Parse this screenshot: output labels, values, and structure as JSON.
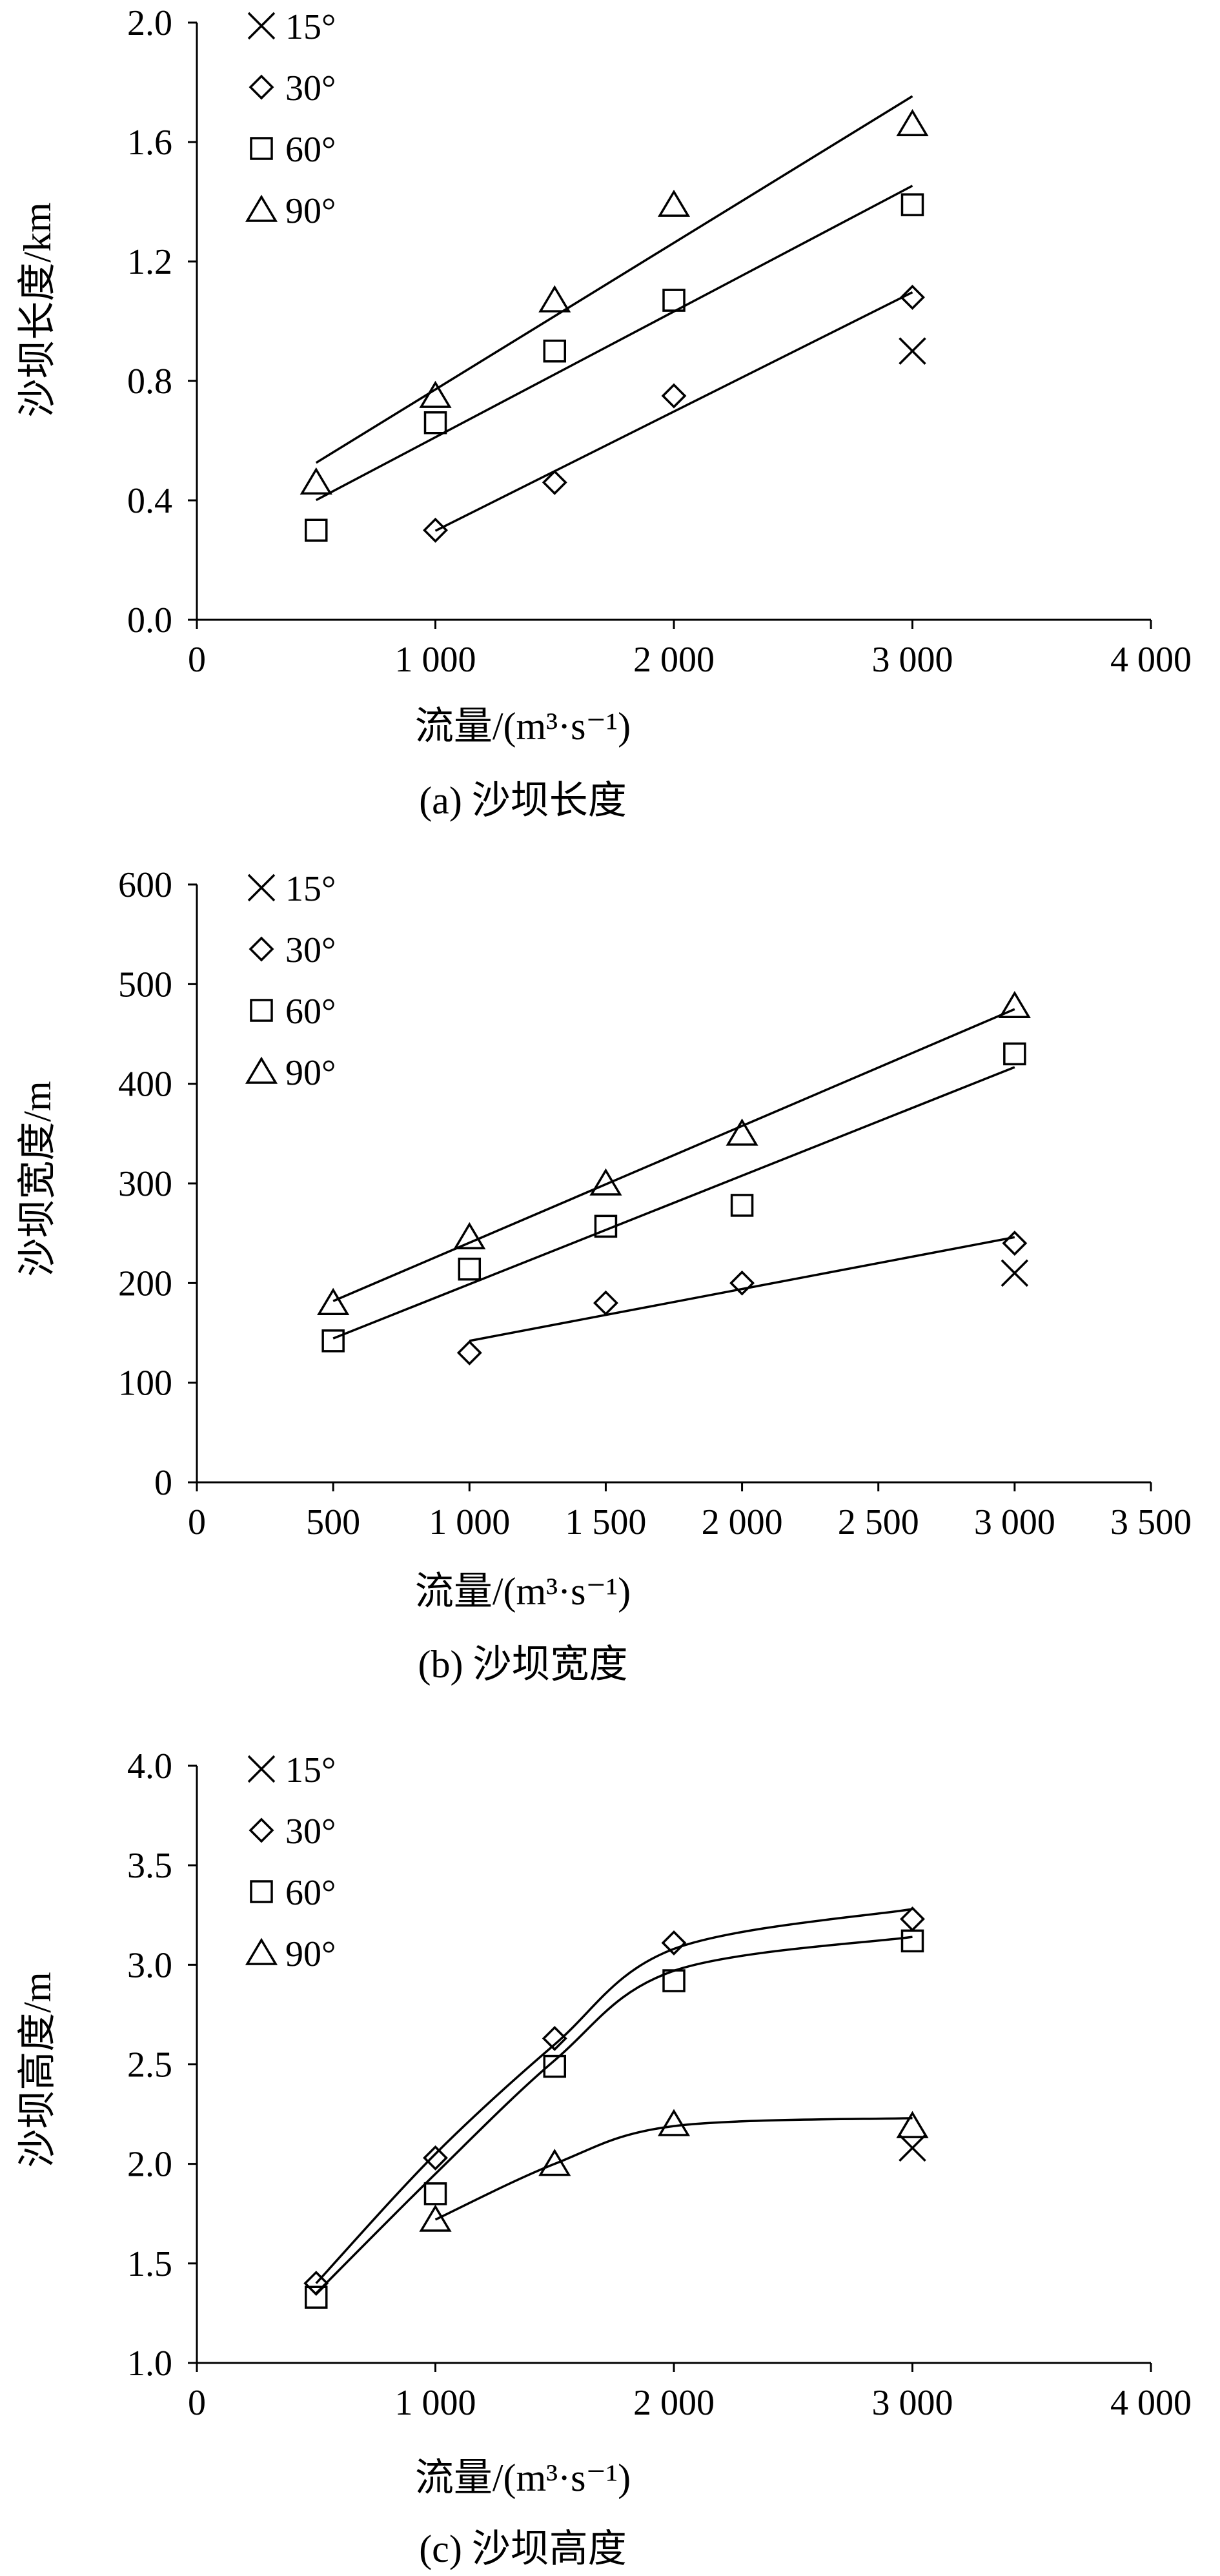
{
  "chart_data": [
    {
      "type": "scatter",
      "id": "a",
      "caption": "(a) 沙坝长度",
      "xlabel": "流量/(m³·s⁻¹)",
      "ylabel": "沙坝长度/km",
      "xlim": [
        0,
        4000
      ],
      "ylim": [
        0,
        2.0
      ],
      "xticks": [
        0,
        1000,
        2000,
        3000,
        4000
      ],
      "xtick_labels": [
        "0",
        "1 000",
        "2 000",
        "3 000",
        "4 000"
      ],
      "yticks": [
        0,
        0.4,
        0.8,
        1.2,
        1.6,
        2.0
      ],
      "ytick_labels": [
        "0.0",
        "0.4",
        "0.8",
        "1.2",
        "1.6",
        "2.0"
      ],
      "legend_position": "top-left",
      "series": [
        {
          "name": "15°",
          "marker": "cross",
          "points": [
            [
              3000,
              0.9
            ]
          ]
        },
        {
          "name": "30°",
          "marker": "diamond",
          "points": [
            [
              1000,
              0.3
            ],
            [
              1500,
              0.46
            ],
            [
              2000,
              0.75
            ],
            [
              3000,
              1.08
            ]
          ],
          "fit": {
            "kind": "linear",
            "x_range": [
              1000,
              3000
            ]
          }
        },
        {
          "name": "60°",
          "marker": "square",
          "points": [
            [
              500,
              0.3
            ],
            [
              1000,
              0.66
            ],
            [
              1500,
              0.9
            ],
            [
              2000,
              1.07
            ],
            [
              3000,
              1.39
            ]
          ],
          "fit": {
            "kind": "linear",
            "x_range": [
              500,
              3000
            ]
          }
        },
        {
          "name": "90°",
          "marker": "triangle",
          "points": [
            [
              500,
              0.46
            ],
            [
              1000,
              0.75
            ],
            [
              1500,
              1.07
            ],
            [
              2000,
              1.39
            ],
            [
              3000,
              1.66
            ]
          ],
          "fit": {
            "kind": "linear",
            "x_range": [
              500,
              3000
            ]
          }
        }
      ]
    },
    {
      "type": "scatter",
      "id": "b",
      "caption": "(b) 沙坝宽度",
      "xlabel": "流量/(m³·s⁻¹)",
      "ylabel": "沙坝宽度/m",
      "xlim": [
        0,
        3500
      ],
      "ylim": [
        0,
        600
      ],
      "xticks": [
        0,
        500,
        1000,
        1500,
        2000,
        2500,
        3000,
        3500
      ],
      "xtick_labels": [
        "0",
        "500",
        "1 000",
        "1 500",
        "2 000",
        "2 500",
        "3 000",
        "3 500"
      ],
      "yticks": [
        0,
        100,
        200,
        300,
        400,
        500,
        600
      ],
      "ytick_labels": [
        "0",
        "100",
        "200",
        "300",
        "400",
        "500",
        "600"
      ],
      "legend_position": "top-left",
      "series": [
        {
          "name": "15°",
          "marker": "cross",
          "points": [
            [
              3000,
              210
            ]
          ]
        },
        {
          "name": "30°",
          "marker": "diamond",
          "points": [
            [
              1000,
              130
            ],
            [
              1500,
              180
            ],
            [
              2000,
              200
            ],
            [
              3000,
              240
            ]
          ],
          "fit": {
            "kind": "linear",
            "x_range": [
              1000,
              3000
            ]
          }
        },
        {
          "name": "60°",
          "marker": "square",
          "points": [
            [
              500,
              142
            ],
            [
              1000,
              214
            ],
            [
              1500,
              257
            ],
            [
              2000,
              278
            ],
            [
              3000,
              430
            ]
          ],
          "fit": {
            "kind": "linear",
            "x_range": [
              500,
              3000
            ]
          }
        },
        {
          "name": "90°",
          "marker": "triangle",
          "points": [
            [
              500,
              180
            ],
            [
              1000,
              246
            ],
            [
              1500,
              300
            ],
            [
              2000,
              350
            ],
            [
              3000,
              478
            ]
          ],
          "fit": {
            "kind": "linear",
            "x_range": [
              500,
              3000
            ]
          }
        }
      ]
    },
    {
      "type": "scatter",
      "id": "c",
      "caption": "(c) 沙坝高度",
      "xlabel": "流量/(m³·s⁻¹)",
      "ylabel": "沙坝高度/m",
      "xlim": [
        0,
        4000
      ],
      "ylim": [
        1.0,
        4.0
      ],
      "xticks": [
        0,
        1000,
        2000,
        3000,
        4000
      ],
      "xtick_labels": [
        "0",
        "1 000",
        "2 000",
        "3 000",
        "4 000"
      ],
      "yticks": [
        1.0,
        1.5,
        2.0,
        2.5,
        3.0,
        3.5,
        4.0
      ],
      "ytick_labels": [
        "1.0",
        "1.5",
        "2.0",
        "2.5",
        "3.0",
        "3.5",
        "4.0"
      ],
      "legend_position": "top-left",
      "series": [
        {
          "name": "15°",
          "marker": "cross",
          "points": [
            [
              3000,
              2.08
            ]
          ]
        },
        {
          "name": "30°",
          "marker": "diamond",
          "points": [
            [
              500,
              1.4
            ],
            [
              1000,
              2.03
            ],
            [
              1500,
              2.63
            ],
            [
              2000,
              3.11
            ],
            [
              3000,
              3.23
            ]
          ],
          "fit": {
            "kind": "smooth",
            "points": [
              [
                500,
                1.4
              ],
              [
                1000,
                2.05
              ],
              [
                1500,
                2.6
              ],
              [
                2000,
                3.08
              ],
              [
                3000,
                3.28
              ]
            ]
          }
        },
        {
          "name": "60°",
          "marker": "square",
          "points": [
            [
              500,
              1.33
            ],
            [
              1000,
              1.85
            ],
            [
              1500,
              2.49
            ],
            [
              2000,
              2.92
            ],
            [
              3000,
              3.12
            ]
          ],
          "fit": {
            "kind": "smooth",
            "points": [
              [
                500,
                1.35
              ],
              [
                1000,
                1.95
              ],
              [
                1500,
                2.52
              ],
              [
                2000,
                2.97
              ],
              [
                3000,
                3.14
              ]
            ]
          }
        },
        {
          "name": "90°",
          "marker": "triangle",
          "points": [
            [
              1000,
              1.72
            ],
            [
              1500,
              2.0
            ],
            [
              2000,
              2.2
            ],
            [
              3000,
              2.19
            ]
          ],
          "fit": {
            "kind": "smooth",
            "points": [
              [
                1000,
                1.72
              ],
              [
                1500,
                2.0
              ],
              [
                2000,
                2.19
              ],
              [
                3000,
                2.23
              ]
            ]
          }
        }
      ]
    }
  ]
}
